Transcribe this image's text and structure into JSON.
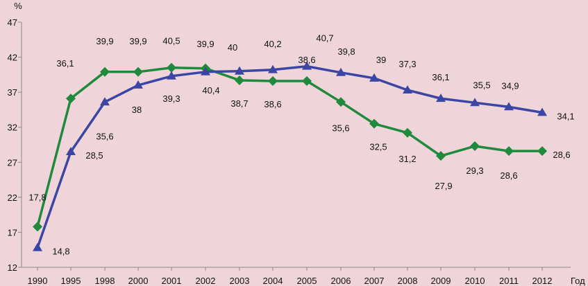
{
  "chart_data": {
    "type": "line",
    "title": "",
    "ylabel": "%",
    "xlabel": "Год",
    "ylim": [
      12,
      47
    ],
    "yticks": [
      12,
      17,
      22,
      27,
      32,
      37,
      42,
      47
    ],
    "categories": [
      "1990",
      "1995",
      "1998",
      "2000",
      "2001",
      "2002",
      "2003",
      "2004",
      "2005",
      "2006",
      "2007",
      "2008",
      "2009",
      "2010",
      "2011",
      "2012"
    ],
    "grid": false,
    "legend": "none",
    "series": [
      {
        "marker": "diamond",
        "color": "#1f8a3c",
        "values": [
          17.8,
          36.1,
          39.9,
          39.9,
          40.5,
          40.4,
          38.7,
          38.6,
          38.6,
          35.6,
          32.5,
          31.2,
          27.9,
          29.3,
          28.6,
          28.6
        ],
        "labels": [
          "17,8",
          "36,1",
          "39,9",
          "39,9",
          "40,5",
          "40,4",
          "38,7",
          "38,6",
          "38,6",
          "35,6",
          "32,5",
          "31,2",
          "27,9",
          "29,3",
          "28,6",
          "28,6"
        ]
      },
      {
        "marker": "triangle",
        "color": "#3a45a4",
        "values": [
          14.8,
          28.5,
          35.6,
          38,
          39.3,
          39.9,
          40,
          40.2,
          40.7,
          39.8,
          39,
          37.3,
          36.1,
          35.5,
          34.9,
          34.1
        ],
        "labels": [
          "14,8",
          "28,5",
          "35,6",
          "38",
          "39,3",
          "39,9",
          "40",
          "40,2",
          "40,7",
          "39,8",
          "39",
          "37,3",
          "36,1",
          "35,5",
          "34,9",
          "34,1"
        ]
      }
    ]
  }
}
